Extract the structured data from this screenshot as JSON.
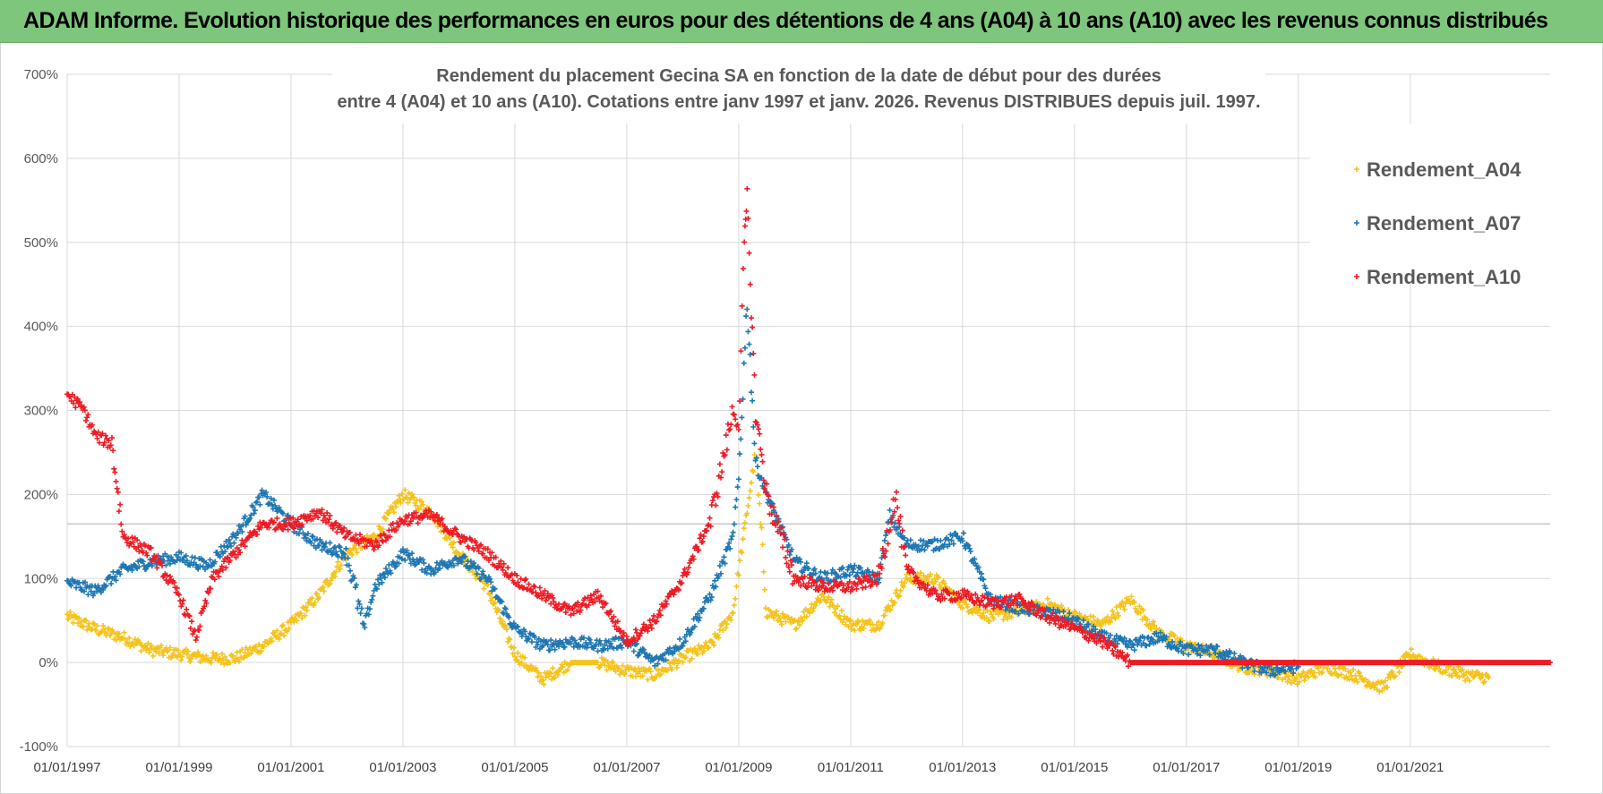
{
  "header": {
    "title": "ADAM Informe. Evolution historique des performances en euros pour des détentions de 4 ans (A04) à 10 ans (A10) avec les revenus connus distribués"
  },
  "chart_data": {
    "type": "scatter",
    "title_line1": "Rendement du placement Gecina SA en fonction de la date de début pour des durées",
    "title_line2": "entre 4 (A04) et 10 ans (A10). Cotations entre janv 1997 et janv. 2026. Revenus DISTRIBUES depuis juil. 1997.",
    "x_axis": {
      "type": "date",
      "range": [
        1997.0,
        2023.5
      ],
      "ticks": [
        1997,
        1999,
        2001,
        2003,
        2005,
        2007,
        2009,
        2011,
        2013,
        2015,
        2017,
        2019,
        2021
      ],
      "tick_labels": [
        "01/01/1997",
        "01/01/1999",
        "01/01/2001",
        "01/01/2003",
        "01/01/2005",
        "01/01/2007",
        "01/01/2009",
        "01/01/2011",
        "01/01/2013",
        "01/01/2015",
        "01/01/2017",
        "01/01/2019",
        "01/01/2021"
      ]
    },
    "y_axis": {
      "range": [
        -100,
        700
      ],
      "ticks": [
        -100,
        0,
        100,
        200,
        300,
        400,
        500,
        600,
        700
      ],
      "tick_labels": [
        "-100%",
        "0%",
        "100%",
        "200%",
        "300%",
        "400%",
        "500%",
        "600%",
        "700%"
      ],
      "unit": "%"
    },
    "grid": true,
    "legend_position": "top-right",
    "series": [
      {
        "name": "Rendement_A04",
        "color": "#f5c31c",
        "marker": "+",
        "x": [
          1997.0,
          1997.5,
          1998.0,
          1998.5,
          1999.0,
          1999.5,
          2000.0,
          2000.5,
          2001.0,
          2001.5,
          2002.0,
          2002.5,
          2003.0,
          2003.5,
          2004.0,
          2004.5,
          2005.0,
          2005.5,
          2006.0,
          2006.5,
          2007.0,
          2007.5,
          2008.0,
          2008.5,
          2008.9,
          2009.0,
          2009.15,
          2009.3,
          2009.5,
          2010.0,
          2010.5,
          2011.0,
          2011.5,
          2012.0,
          2012.5,
          2013.0,
          2013.5,
          2014.0,
          2014.5,
          2015.0,
          2015.5,
          2016.0,
          2016.5,
          2017.0,
          2017.5,
          2018.0,
          2018.5,
          2019.0,
          2019.5,
          2020.0,
          2020.5,
          2021.0,
          2021.5,
          2022.0,
          2022.4
        ],
        "y": [
          55,
          40,
          30,
          15,
          10,
          5,
          5,
          20,
          45,
          80,
          130,
          150,
          200,
          180,
          130,
          90,
          10,
          -20,
          0,
          0,
          -10,
          -15,
          5,
          20,
          60,
          110,
          180,
          250,
          60,
          45,
          80,
          45,
          45,
          100,
          100,
          70,
          55,
          60,
          70,
          55,
          45,
          75,
          35,
          20,
          10,
          -5,
          -10,
          -20,
          -5,
          -15,
          -30,
          10,
          -5,
          -15,
          -18
        ]
      },
      {
        "name": "Rendement_A07",
        "color": "#1f77b4",
        "marker": "+",
        "x": [
          1997.0,
          1997.5,
          1998.0,
          1998.5,
          1999.0,
          1999.5,
          2000.0,
          2000.5,
          2001.0,
          2001.5,
          2002.0,
          2002.3,
          2002.5,
          2003.0,
          2003.5,
          2004.0,
          2004.5,
          2005.0,
          2005.5,
          2006.0,
          2006.5,
          2007.0,
          2007.5,
          2008.0,
          2008.5,
          2008.9,
          2009.0,
          2009.15,
          2009.3,
          2009.5,
          2010.0,
          2010.5,
          2011.0,
          2011.5,
          2011.7,
          2012.0,
          2012.5,
          2013.0,
          2013.5,
          2014.0,
          2014.5,
          2015.0,
          2015.5,
          2016.0,
          2016.5,
          2017.0,
          2017.5,
          2018.0,
          2018.5,
          2019.0
        ],
        "y": [
          95,
          85,
          110,
          120,
          125,
          115,
          150,
          200,
          165,
          140,
          130,
          40,
          90,
          130,
          110,
          125,
          100,
          40,
          20,
          25,
          20,
          25,
          0,
          25,
          80,
          150,
          220,
          430,
          240,
          200,
          120,
          100,
          110,
          100,
          175,
          140,
          140,
          150,
          75,
          65,
          60,
          50,
          30,
          20,
          30,
          15,
          15,
          0,
          -10,
          -5
        ]
      },
      {
        "name": "Rendement_A10",
        "color": "#ee1c25",
        "marker": "+",
        "x": [
          1997.0,
          1997.3,
          1997.5,
          1997.8,
          1998.0,
          1998.5,
          1999.0,
          1999.3,
          1999.6,
          2000.0,
          2000.5,
          2001.0,
          2001.5,
          2002.0,
          2002.5,
          2003.0,
          2003.5,
          2004.0,
          2004.5,
          2005.0,
          2005.5,
          2006.0,
          2006.5,
          2007.0,
          2007.5,
          2008.0,
          2008.5,
          2008.9,
          2009.0,
          2009.1,
          2009.15,
          2009.3,
          2009.5,
          2010.0,
          2010.5,
          2011.0,
          2011.5,
          2011.8,
          2012.0,
          2012.5,
          2013.0,
          2013.5,
          2014.0,
          2014.5,
          2015.0,
          2015.5,
          2016.0,
          2016.5,
          2017.0,
          2018.0,
          2019.0,
          2020.0,
          2021.0,
          2022.0,
          2023.0,
          2023.5
        ],
        "y": [
          320,
          300,
          270,
          260,
          150,
          130,
          80,
          30,
          100,
          130,
          165,
          165,
          180,
          150,
          140,
          170,
          175,
          150,
          130,
          100,
          80,
          60,
          80,
          25,
          50,
          100,
          170,
          300,
          280,
          500,
          550,
          300,
          200,
          100,
          90,
          90,
          100,
          200,
          110,
          80,
          80,
          70,
          75,
          55,
          40,
          25,
          0,
          0,
          0,
          0,
          0,
          0,
          0,
          0,
          0,
          0
        ]
      }
    ]
  }
}
